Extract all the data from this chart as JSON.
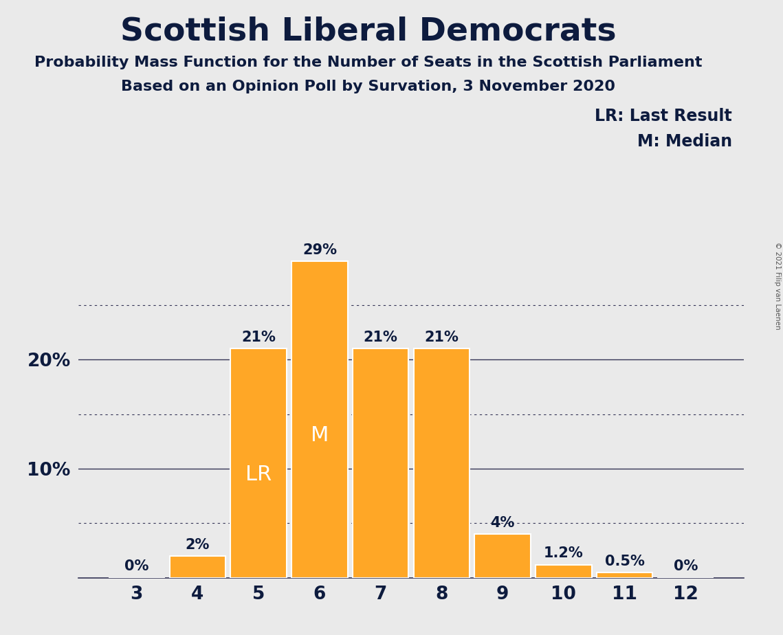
{
  "title": "Scottish Liberal Democrats",
  "subtitle1": "Probability Mass Function for the Number of Seats in the Scottish Parliament",
  "subtitle2": "Based on an Opinion Poll by Survation, 3 November 2020",
  "copyright": "© 2021 Filip van Laenen",
  "categories": [
    3,
    4,
    5,
    6,
    7,
    8,
    9,
    10,
    11,
    12
  ],
  "values": [
    0.0,
    2.0,
    21.0,
    29.0,
    21.0,
    21.0,
    4.0,
    1.2,
    0.5,
    0.0
  ],
  "bar_color": "#FFA726",
  "bar_labels": [
    "0%",
    "2%",
    "21%",
    "29%",
    "21%",
    "21%",
    "4%",
    "1.2%",
    "0.5%",
    "0%"
  ],
  "inside_labels": [
    {
      "bar_index": 2,
      "text": "LR",
      "color": "white",
      "fontsize": 22
    },
    {
      "bar_index": 3,
      "text": "M",
      "color": "white",
      "fontsize": 22
    }
  ],
  "legend_text1": "LR: Last Result",
  "legend_text2": "M: Median",
  "major_yticks": [
    10,
    20
  ],
  "dotted_yticks": [
    5,
    15,
    25
  ],
  "ylim": [
    0,
    32
  ],
  "background_color": "#eaeaea",
  "title_fontsize": 34,
  "subtitle_fontsize": 16,
  "bar_label_fontsize": 15,
  "axis_label_fontsize": 19,
  "legend_fontsize": 17,
  "text_color": "#0d1b3e"
}
